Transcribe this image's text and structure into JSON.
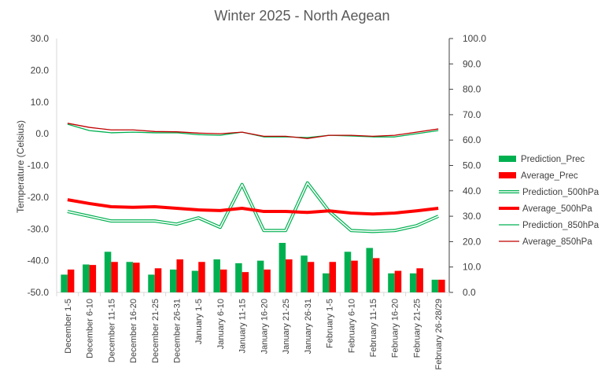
{
  "chart_data": {
    "type": "bar+line",
    "title": "Winter 2025 - North Aegean",
    "ylabel": "Temperature (Celsius)",
    "xlabel": "",
    "ylim": [
      -50,
      30
    ],
    "y2lim": [
      0,
      100
    ],
    "y_ticks": [
      "30.0",
      "20.0",
      "10.0",
      "0.0",
      "-10.0",
      "-20.0",
      "-30.0",
      "-40.0",
      "-50.0"
    ],
    "y2_ticks": [
      "100.0",
      "90.0",
      "80.0",
      "70.0",
      "60.0",
      "50.0",
      "40.0",
      "30.0",
      "20.0",
      "10.0",
      "0.0"
    ],
    "grid": false,
    "legend_position": "right",
    "categories": [
      "December 1-5",
      "December 6-10",
      "December 11-15",
      "December 16-20",
      "December 21-25",
      "December 26-31",
      "January 1-5",
      "January 6-10",
      "January 11-15",
      "January 16-20",
      "January 21-25",
      "January 26-31",
      "February 1-5",
      "February 6-10",
      "February 11-15",
      "February 16-20",
      "February 21-25",
      "February 26-28/29"
    ],
    "series": [
      {
        "name": "Prediction_Prec",
        "kind": "bar",
        "axis": "secondary",
        "color": "#00b050",
        "values": [
          7,
          11,
          16,
          12,
          7,
          9,
          8.5,
          13,
          11.5,
          12.5,
          19.5,
          14.5,
          7.5,
          16,
          17.5,
          7.5,
          7.5,
          5
        ]
      },
      {
        "name": "Average_Prec",
        "kind": "bar",
        "axis": "secondary",
        "color": "#ff0000",
        "values": [
          9,
          10.8,
          12,
          11.7,
          9.5,
          13,
          12,
          9,
          8,
          9,
          13,
          12,
          12,
          12.5,
          13.5,
          8.5,
          9.5,
          5
        ]
      },
      {
        "name": "Prediction_500hPa",
        "kind": "line",
        "style": "double",
        "axis": "primary",
        "color": "#00b050",
        "values": [
          -24.5,
          -26,
          -27.5,
          -27.5,
          -27.5,
          -28.5,
          -26.5,
          -29.5,
          -16,
          -30.5,
          -30.5,
          -15.5,
          -24.5,
          -30.5,
          -30.8,
          -30.5,
          -29,
          -26
        ]
      },
      {
        "name": "Average_500hPa",
        "kind": "line",
        "style": "thick",
        "axis": "primary",
        "color": "#ff0000",
        "values": [
          -20.8,
          -22,
          -23,
          -23.2,
          -23,
          -23.5,
          -24,
          -24.2,
          -23.5,
          -24.5,
          -24.5,
          -24.8,
          -24.3,
          -25,
          -25.3,
          -25,
          -24.3,
          -23.5
        ]
      },
      {
        "name": "Prediction_850hPa",
        "kind": "line",
        "style": "thin",
        "axis": "primary",
        "color": "#00b050",
        "values": [
          3,
          1,
          0.3,
          0.5,
          0.3,
          0.3,
          -0.3,
          -0.5,
          0.5,
          -1,
          -1,
          -1.2,
          -0.5,
          -0.7,
          -1,
          -1,
          0,
          1
        ]
      },
      {
        "name": "Average_850hPa",
        "kind": "line",
        "style": "thin",
        "axis": "primary",
        "color": "#c00000",
        "values": [
          3.3,
          2,
          1.2,
          1.2,
          0.7,
          0.6,
          0.2,
          0,
          0.5,
          -0.8,
          -0.8,
          -1.5,
          -0.5,
          -0.5,
          -0.8,
          -0.5,
          0.5,
          1.5
        ]
      }
    ]
  }
}
